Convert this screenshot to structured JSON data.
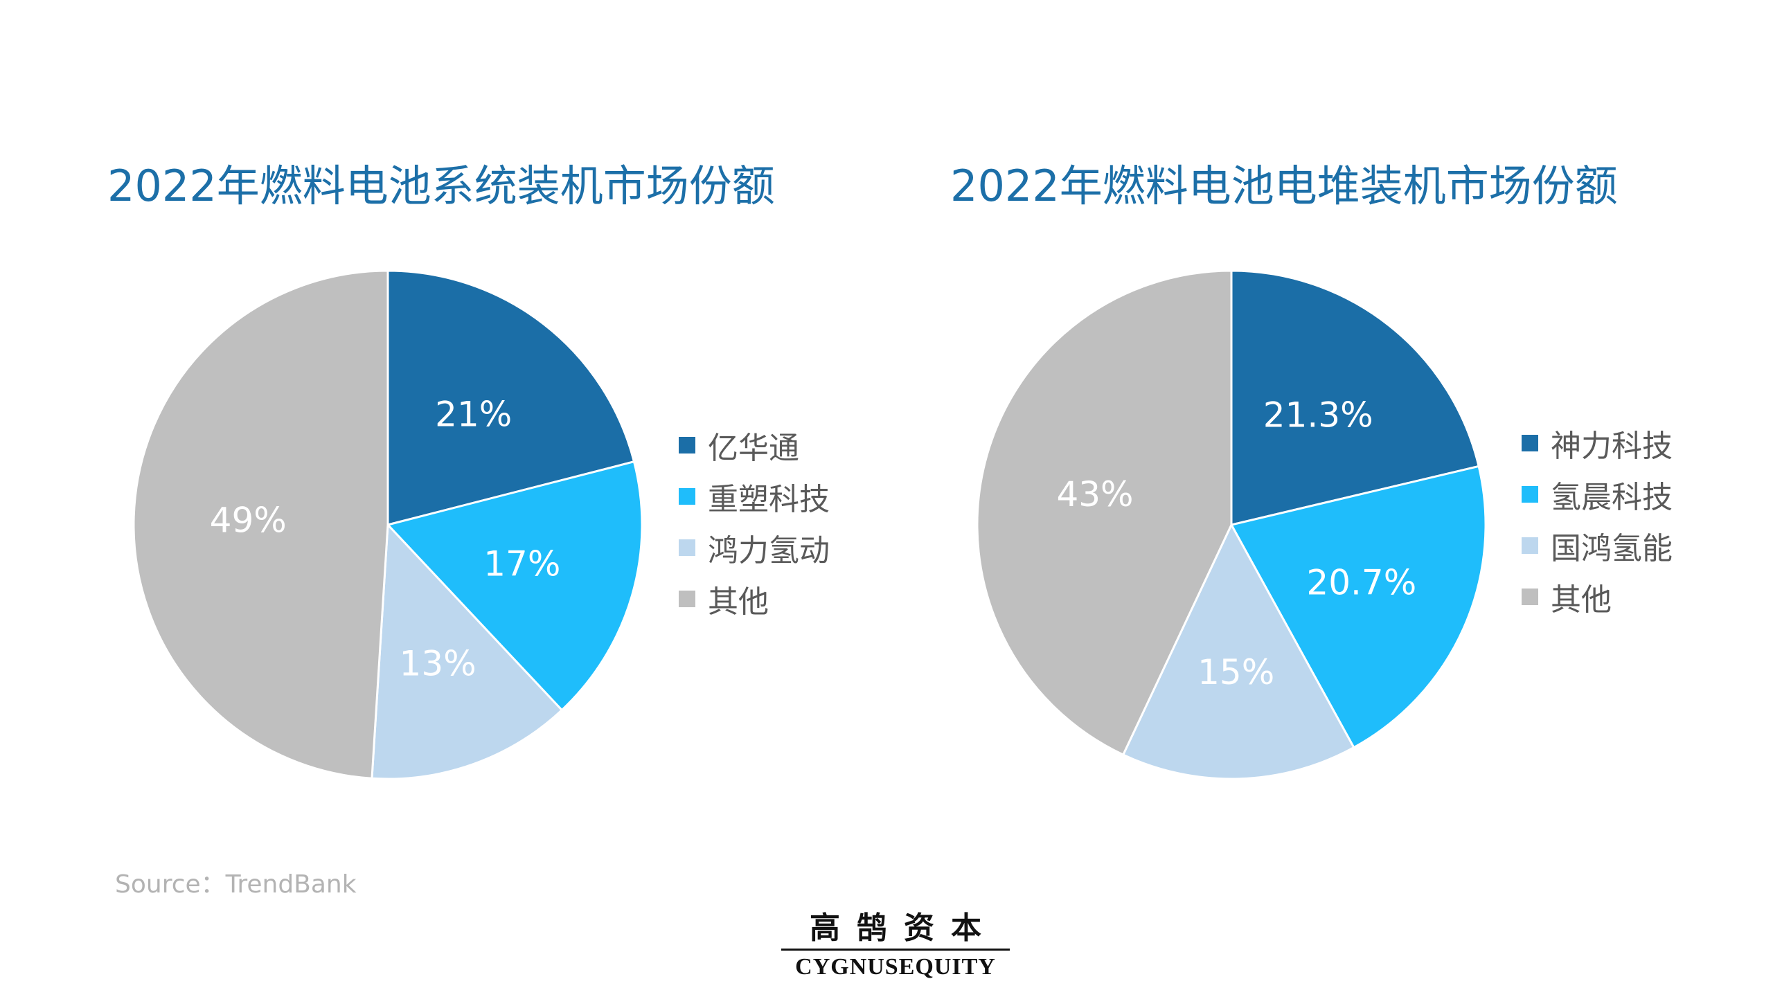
{
  "chart_data": [
    {
      "type": "pie",
      "title": "2022年燃料电池系统装机市场份额",
      "categories": [
        "亿华通",
        "重塑科技",
        "鸿力氢动",
        "其他"
      ],
      "values": [
        21,
        17,
        13,
        49
      ],
      "labels": [
        "21%",
        "17%",
        "13%",
        "49%"
      ],
      "colors": [
        "#1b6ea7",
        "#1fbdfb",
        "#bdd7ee",
        "#bfbfbf"
      ],
      "legend": "right"
    },
    {
      "type": "pie",
      "title": "2022年燃料电池电堆装机市场份额",
      "categories": [
        "神力科技",
        "氢晨科技",
        "国鸿氢能",
        "其他"
      ],
      "values": [
        21.3,
        20.7,
        15,
        43
      ],
      "labels": [
        "21.3%",
        "20.7%",
        "15%",
        "43%"
      ],
      "colors": [
        "#1b6ea7",
        "#1fbdfb",
        "#bdd7ee",
        "#bfbfbf"
      ],
      "legend": "right"
    }
  ],
  "source": "Source：TrendBank",
  "logo": {
    "cn": "高鹄资本",
    "en_bold": "CYGNUS",
    "en_rest": "EQUITY"
  }
}
